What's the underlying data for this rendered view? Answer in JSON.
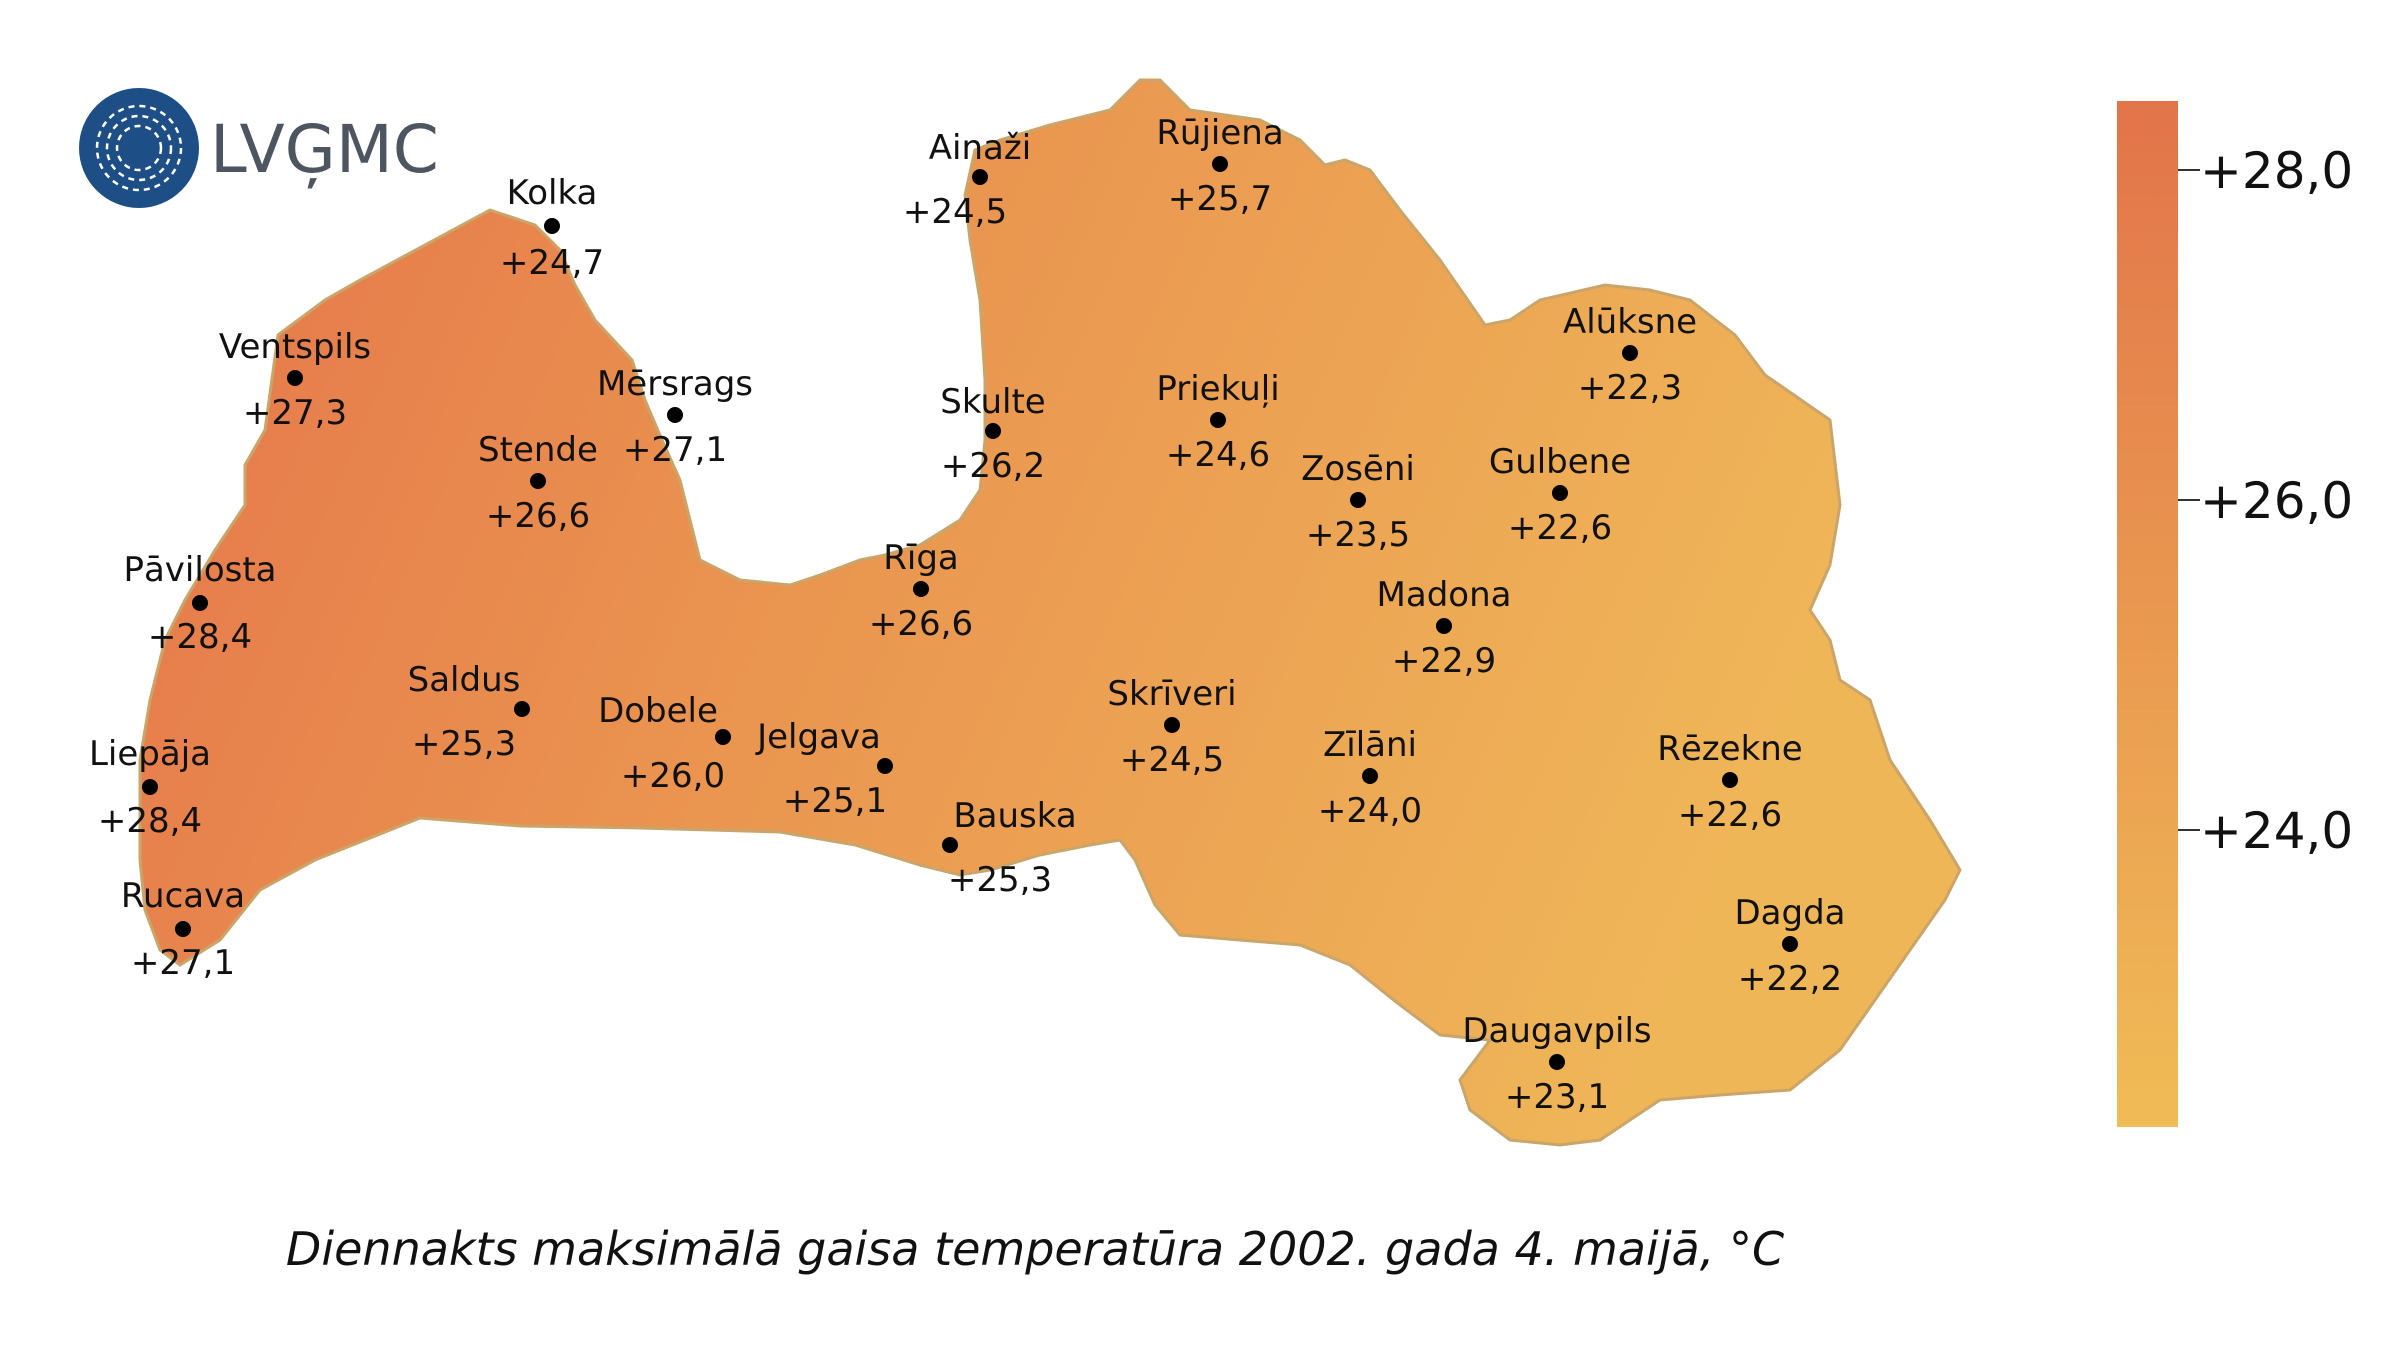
{
  "logo": {
    "text": "LVĢMC",
    "color": "#1d4f86"
  },
  "caption": "Diennakts maksimālā gaisa temperatūra 2002. gada 4. maijā, °C",
  "legend": {
    "labels": [
      "+28,0",
      "+26,0",
      "+24,0"
    ],
    "top_color": "#e2744a",
    "bottom_color": "#f0bc56"
  },
  "map_colors": {
    "west": "#e5754b",
    "center": "#ea9550",
    "east": "#efb658",
    "outline": "#caa56a"
  },
  "stations": [
    {
      "name": "Kolka",
      "value": "+24,7"
    },
    {
      "name": "Ventspils",
      "value": "+27,3"
    },
    {
      "name": "Mērsrags",
      "value": "+27,1"
    },
    {
      "name": "Stende",
      "value": "+26,6"
    },
    {
      "name": "Pāvilosta",
      "value": "+28,4"
    },
    {
      "name": "Liepāja",
      "value": "+28,4"
    },
    {
      "name": "Rucava",
      "value": "+27,1"
    },
    {
      "name": "Saldus",
      "value": "+25,3"
    },
    {
      "name": "Dobele",
      "value": "+26,0"
    },
    {
      "name": "Jelgava",
      "value": "+25,1"
    },
    {
      "name": "Bauska",
      "value": "+25,3"
    },
    {
      "name": "Rīga",
      "value": "+26,6"
    },
    {
      "name": "Skulte",
      "value": "+26,2"
    },
    {
      "name": "Ainaži",
      "value": "+24,5"
    },
    {
      "name": "Rūjiena",
      "value": "+25,7"
    },
    {
      "name": "Priekuļi",
      "value": "+24,6"
    },
    {
      "name": "Skrīveri",
      "value": "+24,5"
    },
    {
      "name": "Zosēni",
      "value": "+23,5"
    },
    {
      "name": "Madona",
      "value": "+22,9"
    },
    {
      "name": "Zīlāni",
      "value": "+24,0"
    },
    {
      "name": "Alūksne",
      "value": "+22,3"
    },
    {
      "name": "Gulbene",
      "value": "+22,6"
    },
    {
      "name": "Rēzekne",
      "value": "+22,6"
    },
    {
      "name": "Dagda",
      "value": "+22,2"
    },
    {
      "name": "Daugavpils",
      "value": "+23,1"
    }
  ]
}
